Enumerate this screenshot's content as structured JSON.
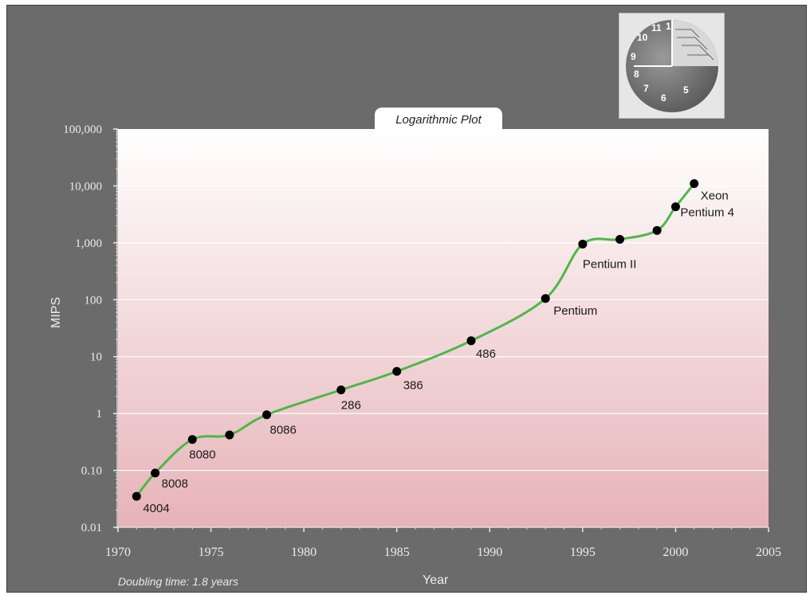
{
  "chart_data": {
    "type": "line",
    "title": "Logarithmic Plot",
    "xlabel": "Year",
    "ylabel": "MIPS",
    "xlim": [
      1970,
      2005
    ],
    "ylim": [
      0.01,
      100000
    ],
    "y_scale": "log",
    "x_ticks": [
      "1970",
      "1975",
      "1980",
      "1985",
      "1990",
      "1995",
      "2000",
      "2005"
    ],
    "y_ticks": [
      "0.01",
      "0.10",
      "1",
      "10",
      "100",
      "1,000",
      "10,000",
      "100,000"
    ],
    "grid": true,
    "points": [
      {
        "label": "4004",
        "x": 1971,
        "y": 0.035
      },
      {
        "label": "8008",
        "x": 1972,
        "y": 0.09
      },
      {
        "label": "8080",
        "x": 1974,
        "y": 0.35
      },
      {
        "label": "",
        "x": 1976,
        "y": 0.42
      },
      {
        "label": "8086",
        "x": 1978,
        "y": 0.95
      },
      {
        "label": "286",
        "x": 1982,
        "y": 2.6
      },
      {
        "label": "386",
        "x": 1985,
        "y": 5.5
      },
      {
        "label": "486",
        "x": 1989,
        "y": 19
      },
      {
        "label": "Pentium",
        "x": 1993,
        "y": 105
      },
      {
        "label": "Pentium II",
        "x": 1995,
        "y": 950
      },
      {
        "label": "",
        "x": 1997,
        "y": 1150
      },
      {
        "label": "",
        "x": 1999,
        "y": 1650
      },
      {
        "label": "Pentium 4",
        "x": 2000,
        "y": 4300
      },
      {
        "label": "Xeon",
        "x": 2001,
        "y": 11000
      }
    ],
    "line_color": "#4db848",
    "point_color": "#000000"
  },
  "footer": {
    "note": "Doubling time: 1.8 years"
  },
  "logo": {
    "clock_numbers": [
      "1",
      "11",
      "10",
      "9",
      "8",
      "7",
      "6",
      "5"
    ]
  },
  "colors": {
    "background": "#6b6b6b",
    "plot_top": "#ffffff",
    "plot_bottom": "#e6b3b8"
  }
}
